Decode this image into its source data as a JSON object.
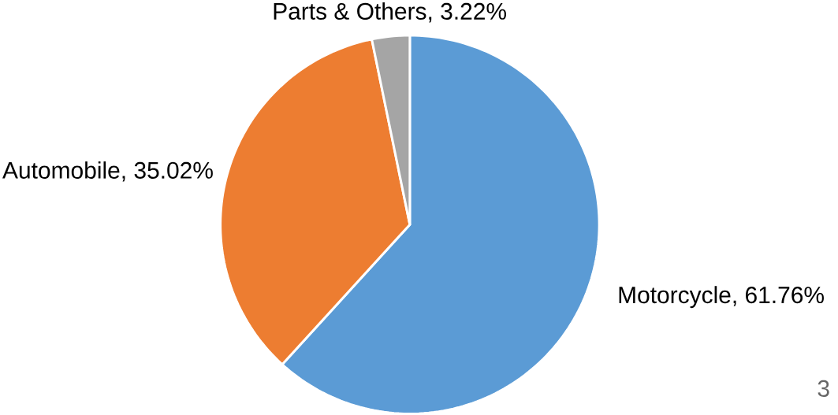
{
  "chart_data": {
    "type": "pie",
    "categories": [
      "Motorcycle",
      "Automobile",
      "Parts & Others"
    ],
    "values": [
      61.76,
      35.02,
      3.22
    ],
    "value_labels": [
      ", 61.76%",
      ", 35.02%",
      ", 3.22%"
    ],
    "colors": [
      "#5b9bd5",
      "#ed7d31",
      "#a5a5a5"
    ],
    "annotations": [
      "3"
    ]
  }
}
